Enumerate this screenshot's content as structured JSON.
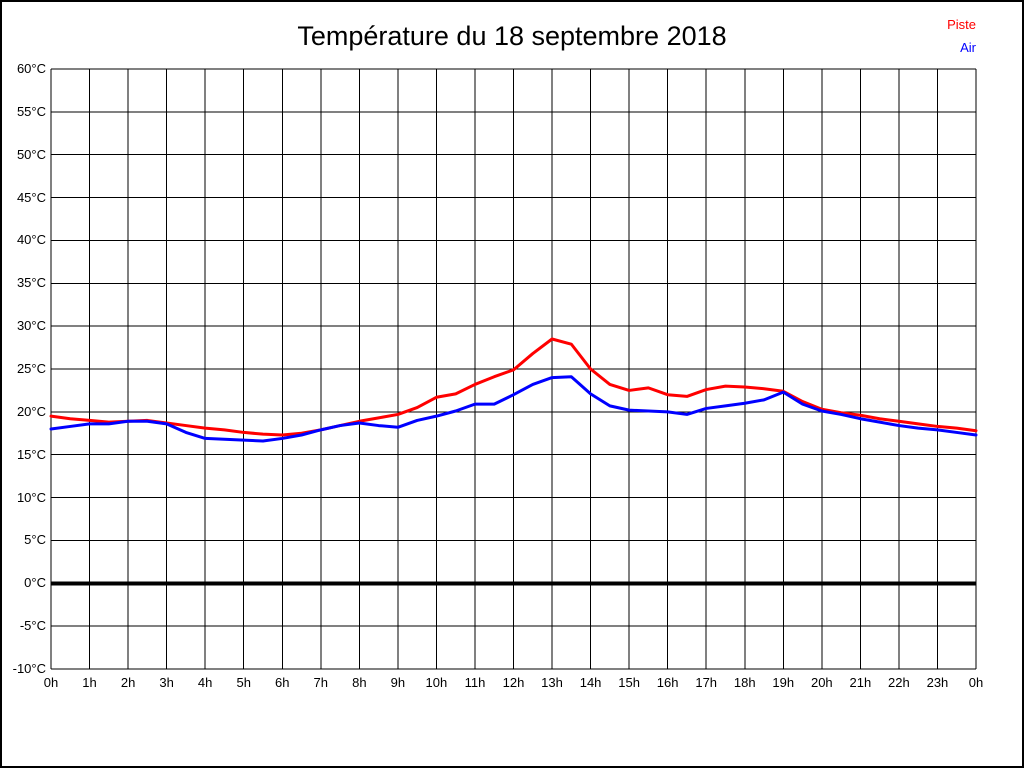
{
  "page": {
    "background": "#ffffff",
    "border_color": "#000000"
  },
  "chart_data": {
    "type": "line",
    "title": "Température du 18 septembre 2018",
    "xlabel": "",
    "ylabel": "",
    "xlim": [
      0,
      24
    ],
    "ylim": [
      -10,
      60
    ],
    "y_step": 5,
    "x_step": 1,
    "grid": true,
    "grid_color": "#000000",
    "zero_line": {
      "value": 0,
      "bold": true,
      "color": "#000000"
    },
    "legend_position": "top-right",
    "x_tick_labels": [
      "0h",
      "1h",
      "2h",
      "3h",
      "4h",
      "5h",
      "6h",
      "7h",
      "8h",
      "9h",
      "10h",
      "11h",
      "12h",
      "13h",
      "14h",
      "15h",
      "16h",
      "17h",
      "18h",
      "19h",
      "20h",
      "21h",
      "22h",
      "23h",
      "0h"
    ],
    "y_tick_labels": [
      "60°C",
      "55°C",
      "50°C",
      "45°C",
      "40°C",
      "35°C",
      "30°C",
      "25°C",
      "20°C",
      "15°C",
      "10°C",
      "5°C",
      "0°C",
      "-5°C",
      "-10°C"
    ],
    "x": [
      0,
      0.5,
      1,
      1.5,
      2,
      2.5,
      3,
      3.5,
      4,
      4.5,
      5,
      5.5,
      6,
      6.5,
      7,
      7.5,
      8,
      8.5,
      9,
      9.5,
      10,
      10.5,
      11,
      11.5,
      12,
      12.5,
      13,
      13.5,
      14,
      14.5,
      15,
      15.5,
      16,
      16.5,
      17,
      17.5,
      18,
      18.5,
      19,
      19.5,
      20,
      20.5,
      21,
      21.5,
      22,
      22.5,
      23,
      23.5,
      24
    ],
    "series": [
      {
        "name": "Piste",
        "color": "#ff0000",
        "values": [
          19.5,
          19.2,
          19.0,
          18.8,
          18.9,
          19.0,
          18.7,
          18.4,
          18.1,
          17.9,
          17.6,
          17.4,
          17.3,
          17.5,
          17.9,
          18.4,
          18.9,
          19.3,
          19.7,
          20.5,
          21.7,
          22.1,
          23.2,
          24.1,
          24.9,
          26.8,
          28.5,
          27.9,
          25.0,
          23.2,
          22.5,
          22.8,
          22.0,
          21.8,
          22.6,
          23.0,
          22.9,
          22.7,
          22.4,
          21.2,
          20.3,
          19.9,
          19.6,
          19.2,
          18.9,
          18.6,
          18.3,
          18.1,
          17.8
        ]
      },
      {
        "name": "Air",
        "color": "#0000ff",
        "values": [
          18.0,
          18.3,
          18.6,
          18.6,
          18.9,
          18.9,
          18.6,
          17.6,
          16.9,
          16.8,
          16.7,
          16.6,
          16.9,
          17.3,
          17.9,
          18.4,
          18.7,
          18.4,
          18.2,
          19.0,
          19.5,
          20.1,
          20.9,
          20.9,
          22.0,
          23.2,
          24.0,
          24.1,
          22.1,
          20.7,
          20.2,
          20.1,
          20.0,
          19.7,
          20.4,
          20.7,
          21.0,
          21.4,
          22.3,
          20.9,
          20.1,
          19.7,
          19.2,
          18.8,
          18.4,
          18.1,
          17.9,
          17.6,
          17.3
        ]
      }
    ]
  }
}
